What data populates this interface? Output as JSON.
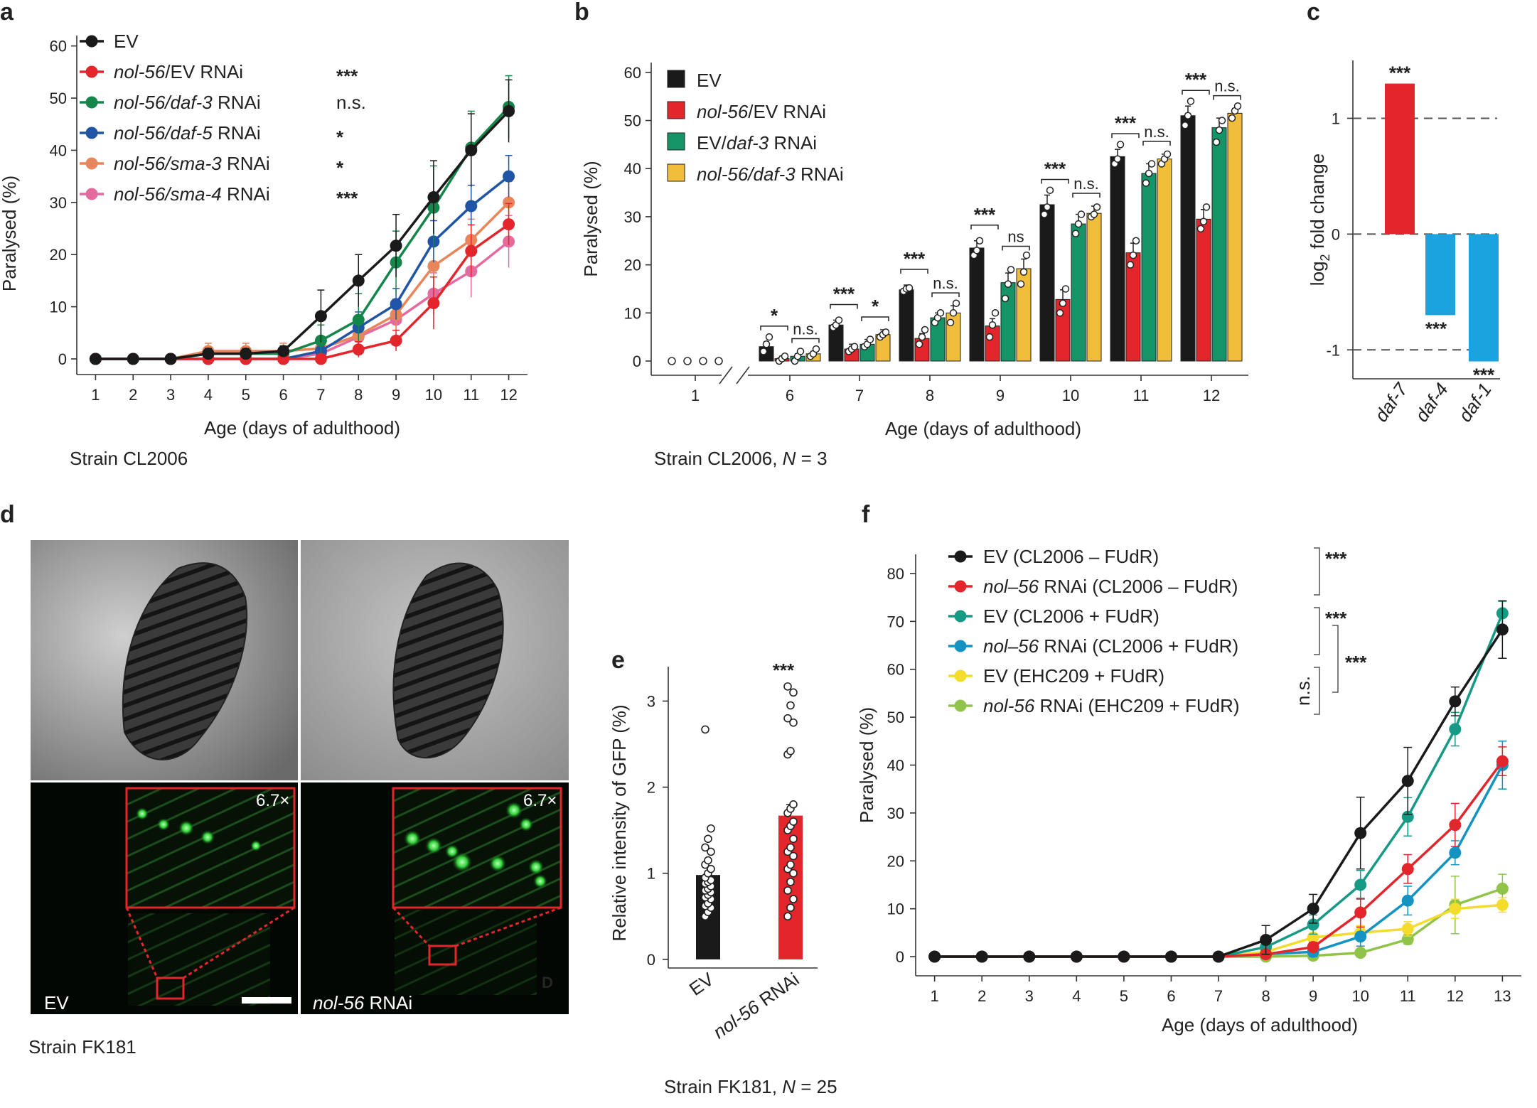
{
  "panels": {
    "a": "a",
    "b": "b",
    "c": "c",
    "d": "d",
    "e": "e",
    "f": "f"
  },
  "captions": {
    "a": "Strain CL2006",
    "b_prefix": "Strain CL2006, ",
    "b_n": "N",
    "b_suffix": " = 3",
    "d": "Strain FK181",
    "e_prefix": "Strain FK181, ",
    "e_n": "N",
    "e_suffix": " = 25"
  },
  "micrograph": {
    "label_left": "EV",
    "label_right_italic": "nol-56",
    "label_right_rest": " RNAi",
    "zoom_left": "6.7×",
    "zoom_right": "6.7×",
    "corner_mark": "D"
  },
  "colors": {
    "black": "#1a1a1a",
    "red": "#e2262b",
    "green_a": "#14864a",
    "blue_a": "#2055a5",
    "orange_a": "#e8865b",
    "pink_a": "#e56a9f",
    "green_b": "#149467",
    "yellow_b": "#f0be3b",
    "blue_c": "#1aa3df",
    "teal_f": "#169a86",
    "blue_f": "#1493c3",
    "yellow_f": "#f3dc2c",
    "lime_f": "#8fc449"
  },
  "chart_data": [
    {
      "panel": "a",
      "type": "line",
      "xlabel": "Age (days of adulthood)",
      "ylabel": "Paralysed (%)",
      "x": [
        1,
        2,
        3,
        4,
        5,
        6,
        7,
        8,
        9,
        10,
        11,
        12
      ],
      "xlim": [
        0.5,
        12.5
      ],
      "ylim": [
        -3,
        62
      ],
      "yticks": [
        0,
        10,
        20,
        30,
        40,
        50,
        60
      ],
      "series": [
        {
          "name": "EV",
          "name_italic": "",
          "name_rest": "EV",
          "color": "black",
          "sig": "",
          "values": [
            0,
            0,
            0,
            1,
            1,
            1.5,
            8.2,
            15,
            21.7,
            31,
            40,
            47.5
          ],
          "err": [
            0,
            0,
            0,
            1,
            1,
            1,
            5,
            5,
            6,
            7,
            7,
            6
          ]
        },
        {
          "name": "nol-56/EV RNAi",
          "name_italic": "nol-56",
          "name_rest": "/EV RNAi",
          "color": "red",
          "sig": "***",
          "values": [
            0,
            0,
            0,
            0,
            0,
            0,
            0,
            1.8,
            3.5,
            10.7,
            20.7,
            25.8
          ],
          "err": [
            0,
            0,
            0,
            0,
            0,
            0,
            0,
            1.5,
            2,
            5,
            5,
            4
          ]
        },
        {
          "name": "nol-56/daf-3 RNAi",
          "name_italic": "nol-56/daf-3",
          "name_rest": " RNAi",
          "color": "green_a",
          "sig": "n.s.",
          "values": [
            0,
            0,
            0,
            1,
            1,
            1,
            3.5,
            7.5,
            18.5,
            29,
            40.5,
            48.3
          ],
          "err": [
            0,
            0,
            0,
            1,
            1,
            1,
            3,
            5,
            6,
            8,
            7,
            6
          ]
        },
        {
          "name": "nol-56/daf-5 RNAi",
          "name_italic": "nol-56/daf-5",
          "name_rest": " RNAi",
          "color": "blue_a",
          "sig": "*",
          "values": [
            0,
            0,
            0,
            0,
            0,
            0,
            1.5,
            6,
            10.5,
            22.5,
            29.3,
            35
          ],
          "err": [
            0,
            0,
            0,
            0,
            0,
            0,
            1,
            3,
            3,
            4,
            4,
            4
          ]
        },
        {
          "name": "nol-56/sma-3 RNAi",
          "name_italic": "nol-56/sma-3",
          "name_rest": " RNAi",
          "color": "orange_a",
          "sig": "*",
          "values": [
            0,
            0,
            0,
            1.5,
            1.5,
            1.5,
            2,
            4.5,
            8.5,
            17.8,
            22.8,
            30
          ],
          "err": [
            0,
            0,
            0,
            1.5,
            1.5,
            1.5,
            2,
            3,
            3,
            4,
            4,
            4
          ]
        },
        {
          "name": "nol-56/sma-4 RNAi",
          "name_italic": "nol-56/sma-4",
          "name_rest": " RNAi",
          "color": "pink_a",
          "sig": "***",
          "values": [
            0,
            0,
            0,
            0,
            0,
            0,
            1,
            4.2,
            7.5,
            12.5,
            16.8,
            22.5
          ],
          "err": [
            0,
            0,
            0,
            0,
            0,
            0,
            1,
            2,
            2,
            4,
            5,
            5
          ]
        }
      ]
    },
    {
      "panel": "b",
      "type": "bar",
      "xlabel": "Age (days of adulthood)",
      "ylabel": "Paralysed (%)",
      "categories": [
        "1",
        "6",
        "7",
        "8",
        "9",
        "10",
        "11",
        "12"
      ],
      "ylim": [
        0,
        65
      ],
      "yticks": [
        0,
        10,
        20,
        30,
        40,
        50,
        60
      ],
      "axis_break_after": "1",
      "series": [
        {
          "name": "EV",
          "name_italic": "",
          "name_rest": "EV",
          "color": "black",
          "values": [
            0,
            3,
            7.5,
            14.8,
            23.5,
            32.5,
            42.5,
            51
          ],
          "err": [
            0,
            1,
            1,
            1,
            1.5,
            2,
            1.5,
            2
          ]
        },
        {
          "name": "nol-56/EV RNAi",
          "name_italic": "nol-56",
          "name_rest": "/EV RNAi",
          "color": "red",
          "values": [
            0,
            0.5,
            2.5,
            4.7,
            7.3,
            12.8,
            22.5,
            29.5
          ],
          "err": [
            0,
            0.5,
            1,
            1,
            1.5,
            2,
            2,
            2
          ]
        },
        {
          "name": "EV/daf-3 RNAi",
          "name_italic": "daf-3",
          "name_rest": "EV/",
          "color": "green_b",
          "values": [
            0,
            1,
            3.5,
            9,
            16.3,
            28.5,
            39,
            48.5
          ],
          "err": [
            0,
            0.5,
            1,
            1,
            2,
            2,
            2,
            2
          ]
        },
        {
          "name": "nol-56/daf-3 RNAi",
          "name_italic": "nol-56/daf-3",
          "name_rest": " RNAi",
          "color": "yellow_b",
          "values": [
            0,
            1.5,
            5.5,
            10,
            19.2,
            30.7,
            42,
            51.5
          ],
          "err": [
            0,
            0.5,
            1,
            1.5,
            2,
            1.5,
            1,
            1
          ]
        }
      ],
      "points": [
        [
          [
            0
          ],
          [
            0
          ],
          [
            0
          ],
          [
            0
          ]
        ],
        [
          [
            2,
            3.5,
            5
          ],
          [
            0,
            0.5,
            1
          ],
          [
            0,
            1,
            2
          ],
          [
            1,
            1.5,
            2.5
          ]
        ],
        [
          [
            7,
            7.5,
            8.5
          ],
          [
            2,
            2.5,
            3
          ],
          [
            3,
            3.5,
            4.5
          ],
          [
            5,
            5.5,
            6
          ]
        ],
        [
          [
            14.5,
            15,
            15.2
          ],
          [
            3.5,
            5,
            6.5
          ],
          [
            8,
            9,
            10
          ],
          [
            8,
            10,
            12
          ]
        ],
        [
          [
            22,
            23,
            25
          ],
          [
            5,
            7.5,
            10
          ],
          [
            13,
            16,
            19
          ],
          [
            16,
            18.5,
            22
          ]
        ],
        [
          [
            30.5,
            32,
            35.5
          ],
          [
            10,
            12,
            15
          ],
          [
            26.5,
            28.5,
            30.5
          ],
          [
            30,
            30.5,
            32
          ]
        ],
        [
          [
            41,
            42,
            45
          ],
          [
            20,
            22,
            25
          ],
          [
            37,
            39,
            41
          ],
          [
            41,
            42,
            43
          ]
        ],
        [
          [
            49,
            51,
            54
          ],
          [
            27.5,
            29,
            32
          ],
          [
            45.5,
            48,
            50
          ],
          [
            50.5,
            52,
            53
          ]
        ]
      ],
      "brackets": [
        {
          "cat": "6",
          "pair": "ev-red",
          "label": "*"
        },
        {
          "cat": "6",
          "pair": "green-yellow",
          "label": "n.s."
        },
        {
          "cat": "7",
          "pair": "ev-red",
          "label": "***"
        },
        {
          "cat": "7",
          "pair": "green-yellow",
          "label": "*"
        },
        {
          "cat": "8",
          "pair": "ev-red",
          "label": "***"
        },
        {
          "cat": "8",
          "pair": "green-yellow",
          "label": "n.s."
        },
        {
          "cat": "9",
          "pair": "ev-red",
          "label": "***"
        },
        {
          "cat": "9",
          "pair": "green-yellow",
          "label": "ns"
        },
        {
          "cat": "10",
          "pair": "ev-red",
          "label": "***"
        },
        {
          "cat": "10",
          "pair": "green-yellow",
          "label": "n.s."
        },
        {
          "cat": "11",
          "pair": "ev-red",
          "label": "***"
        },
        {
          "cat": "11",
          "pair": "green-yellow",
          "label": "n.s."
        },
        {
          "cat": "12",
          "pair": "ev-red",
          "label": "***"
        },
        {
          "cat": "12",
          "pair": "green-yellow",
          "label": "n.s."
        }
      ]
    },
    {
      "panel": "c",
      "type": "bar",
      "ylabel_main": "log",
      "ylabel_sub": "2",
      "ylabel_rest": " fold change",
      "categories": [
        "daf-7",
        "daf-4",
        "daf-1"
      ],
      "values": [
        1.3,
        -0.7,
        -1.1
      ],
      "colors": [
        "red",
        "blue_c",
        "blue_c"
      ],
      "sig": [
        "***",
        "***",
        "***"
      ],
      "ylim": [
        -1.25,
        1.5
      ],
      "yticks": [
        -1,
        0,
        1
      ],
      "dashed_lines": [
        -1,
        0,
        1
      ]
    },
    {
      "panel": "e",
      "type": "bar",
      "ylabel": "Relative intensity of GFP (%)",
      "categories": [
        "EV",
        "nol-56 RNAi"
      ],
      "values": [
        0.98,
        1.67
      ],
      "err": [
        0.09,
        0.13
      ],
      "colors": [
        "black",
        "red"
      ],
      "sig": [
        "",
        "***"
      ],
      "ylim": [
        -0.1,
        3.4
      ],
      "yticks": [
        0,
        1,
        2,
        3
      ],
      "points": [
        [
          0.5,
          0.55,
          0.6,
          0.62,
          0.65,
          0.7,
          0.72,
          0.75,
          0.78,
          0.8,
          0.82,
          0.85,
          0.88,
          0.9,
          0.92,
          0.95,
          1.0,
          1.05,
          1.1,
          1.15,
          1.25,
          1.3,
          1.4,
          1.52,
          2.67
        ],
        [
          0.5,
          0.6,
          0.7,
          0.8,
          0.9,
          1.0,
          1.05,
          1.1,
          1.2,
          1.25,
          1.3,
          1.4,
          1.5,
          1.55,
          1.6,
          1.7,
          1.75,
          1.8,
          2.38,
          2.42,
          2.75,
          2.8,
          2.95,
          3.1,
          3.17
        ]
      ]
    },
    {
      "panel": "f",
      "type": "line",
      "xlabel": "Age (days of adulthood)",
      "ylabel": "Paralysed (%)",
      "x": [
        1,
        2,
        3,
        4,
        5,
        6,
        7,
        8,
        9,
        10,
        11,
        12,
        13
      ],
      "xlim": [
        0.6,
        13.4
      ],
      "ylim": [
        -4,
        84
      ],
      "yticks": [
        0,
        10,
        20,
        30,
        40,
        50,
        60,
        70,
        80
      ],
      "series": [
        {
          "name": "EV (CL2006 – FUdR)",
          "name_italic": "",
          "name_rest": "EV (CL2006 – FUdR)",
          "color": "black",
          "values": [
            0,
            0,
            0,
            0,
            0,
            0,
            0,
            3.5,
            10,
            25.8,
            36.7,
            53.3,
            68.3
          ],
          "err": [
            0,
            0,
            0,
            0,
            0,
            0,
            0,
            3,
            3,
            7.5,
            7,
            3,
            6
          ]
        },
        {
          "name": "nol-56 RNAi (CL2006 – FUdR)",
          "name_italic": "nol–56",
          "name_rest": "  RNAi (CL2006 – FUdR)",
          "color": "red",
          "values": [
            0,
            0,
            0,
            0,
            0,
            0,
            0,
            0.5,
            2,
            9.2,
            18.3,
            27.5,
            40.8
          ],
          "err": [
            0,
            0,
            0,
            0,
            0,
            0,
            0,
            0.5,
            1,
            3,
            3,
            4.5,
            3
          ]
        },
        {
          "name": "EV (CL2006 + FUdR)",
          "name_italic": "",
          "name_rest": "EV (CL2006 + FUdR)",
          "color": "teal_f",
          "values": [
            0,
            0,
            0,
            0,
            0,
            0,
            0,
            2,
            6.7,
            15,
            29.2,
            47.5,
            71.7
          ],
          "err": [
            0,
            0,
            0,
            0,
            0,
            0,
            0,
            1.5,
            2,
            3,
            4,
            3.5,
            2.5
          ]
        },
        {
          "name": "nol-56 RNAi (CL2006 + FUdR)",
          "name_italic": "nol–56",
          "name_rest": " RNAi (CL2006 + FUdR)",
          "color": "blue_f",
          "values": [
            0,
            0,
            0,
            0,
            0,
            0,
            0,
            0.5,
            1,
            4.2,
            11.7,
            21.7,
            40
          ],
          "err": [
            0,
            0,
            0,
            0,
            0,
            0,
            0,
            0.5,
            1,
            2,
            3,
            2.5,
            5
          ]
        },
        {
          "name": "EV (EHC209 + FUdR)",
          "name_italic": "",
          "name_rest": "EV (EHC209 + FUdR)",
          "color": "yellow_f",
          "values": [
            0,
            0,
            0,
            0,
            0,
            0,
            0,
            1,
            4,
            5,
            5.8,
            10,
            10.8
          ],
          "err": [
            0,
            0,
            0,
            0,
            0,
            0,
            0,
            1,
            2,
            1.5,
            1.5,
            2,
            1.5
          ]
        },
        {
          "name": "nol-56 RNAi (EHC209 + FUdR)",
          "name_italic": "nol-56",
          "name_rest": " RNAi (EHC209 + FUdR)",
          "color": "lime_f",
          "values": [
            0,
            0,
            0,
            0,
            0,
            0,
            0,
            0,
            0.2,
            0.8,
            3.6,
            10.8,
            14.2
          ],
          "err": [
            0,
            0,
            0,
            0,
            0,
            0,
            0,
            0,
            0.5,
            0.5,
            1,
            6,
            3
          ]
        }
      ],
      "group_brackets": [
        {
          "label": "***",
          "rows": [
            0,
            1
          ]
        },
        {
          "label": "***",
          "rows": [
            2,
            3
          ]
        },
        {
          "label": "n.s.",
          "rows": [
            4,
            5
          ]
        },
        {
          "label": "***",
          "rows": "outer"
        }
      ]
    }
  ]
}
